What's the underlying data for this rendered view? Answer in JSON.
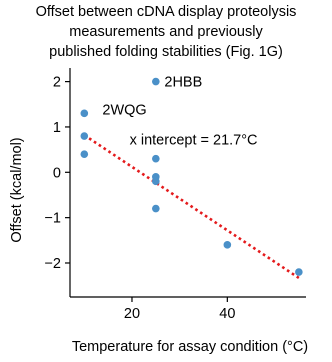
{
  "chart_data": {
    "type": "scatter",
    "title_lines": [
      "Offset between cDNA display proteolysis",
      "measurements and previously",
      "published folding stabilities (Fig. 1G)"
    ],
    "xlabel": "Temperature for assay condition (°C)",
    "ylabel": "Offset (kcal/mol)",
    "xlim": [
      7,
      56.5
    ],
    "ylim": [
      -2.75,
      2.3
    ],
    "xticks": [
      20,
      40
    ],
    "xtick_labels": [
      "20",
      "40"
    ],
    "yticks": [
      2,
      1,
      0,
      -1,
      -2
    ],
    "ytick_labels": [
      "2",
      "1",
      "0",
      "−1",
      "−2"
    ],
    "grid": false,
    "points": [
      {
        "x": 10,
        "y": 1.3
      },
      {
        "x": 10,
        "y": 0.8
      },
      {
        "x": 10,
        "y": 0.4
      },
      {
        "x": 25,
        "y": 2.0
      },
      {
        "x": 25,
        "y": 0.3
      },
      {
        "x": 25,
        "y": -0.1
      },
      {
        "x": 25,
        "y": -0.2
      },
      {
        "x": 25,
        "y": -0.8
      },
      {
        "x": 40,
        "y": -1.6
      },
      {
        "x": 55,
        "y": -2.2
      }
    ],
    "point_color": "#4a90c8",
    "fit_line": {
      "x": [
        10,
        55
      ],
      "y": [
        0.82,
        -2.33
      ],
      "color": "#e41a1c",
      "style": "dotted"
    },
    "annotations": [
      {
        "text": "2HBB",
        "x": 26.8,
        "y": 2.0
      },
      {
        "text": "2WQG",
        "x": 13.8,
        "y": 1.38
      },
      {
        "text": "x intercept = 21.7°C",
        "x": 19.5,
        "y": 0.72
      }
    ]
  }
}
